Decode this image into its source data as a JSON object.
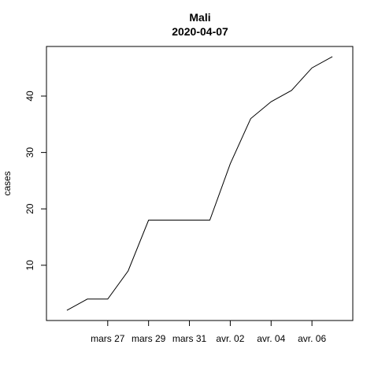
{
  "chart_data": {
    "type": "line",
    "title": "Mali",
    "subtitle": "2020-04-07",
    "xlabel": "",
    "ylabel": "cases",
    "x": [
      "2020-03-25",
      "2020-03-26",
      "2020-03-27",
      "2020-03-28",
      "2020-03-29",
      "2020-03-30",
      "2020-03-31",
      "2020-04-01",
      "2020-04-02",
      "2020-04-03",
      "2020-04-04",
      "2020-04-05",
      "2020-04-06",
      "2020-04-07"
    ],
    "series": [
      {
        "values": [
          2,
          4,
          4,
          9,
          18,
          18,
          18,
          18,
          28,
          36,
          39,
          41,
          45,
          47
        ]
      }
    ],
    "x_ticks": [
      {
        "date": "2020-03-27",
        "label": "mars 27"
      },
      {
        "date": "2020-03-29",
        "label": "mars 29"
      },
      {
        "date": "2020-03-31",
        "label": "mars 31"
      },
      {
        "date": "2020-04-02",
        "label": "avr. 02"
      },
      {
        "date": "2020-04-04",
        "label": "avr. 04"
      },
      {
        "date": "2020-04-06",
        "label": "avr. 06"
      }
    ],
    "y_ticks": [
      10,
      20,
      30,
      40
    ],
    "xlim": [
      "2020-03-24",
      "2020-04-08"
    ],
    "ylim": [
      0.2,
      48.8
    ],
    "grid": false,
    "line_color": "#000000"
  }
}
